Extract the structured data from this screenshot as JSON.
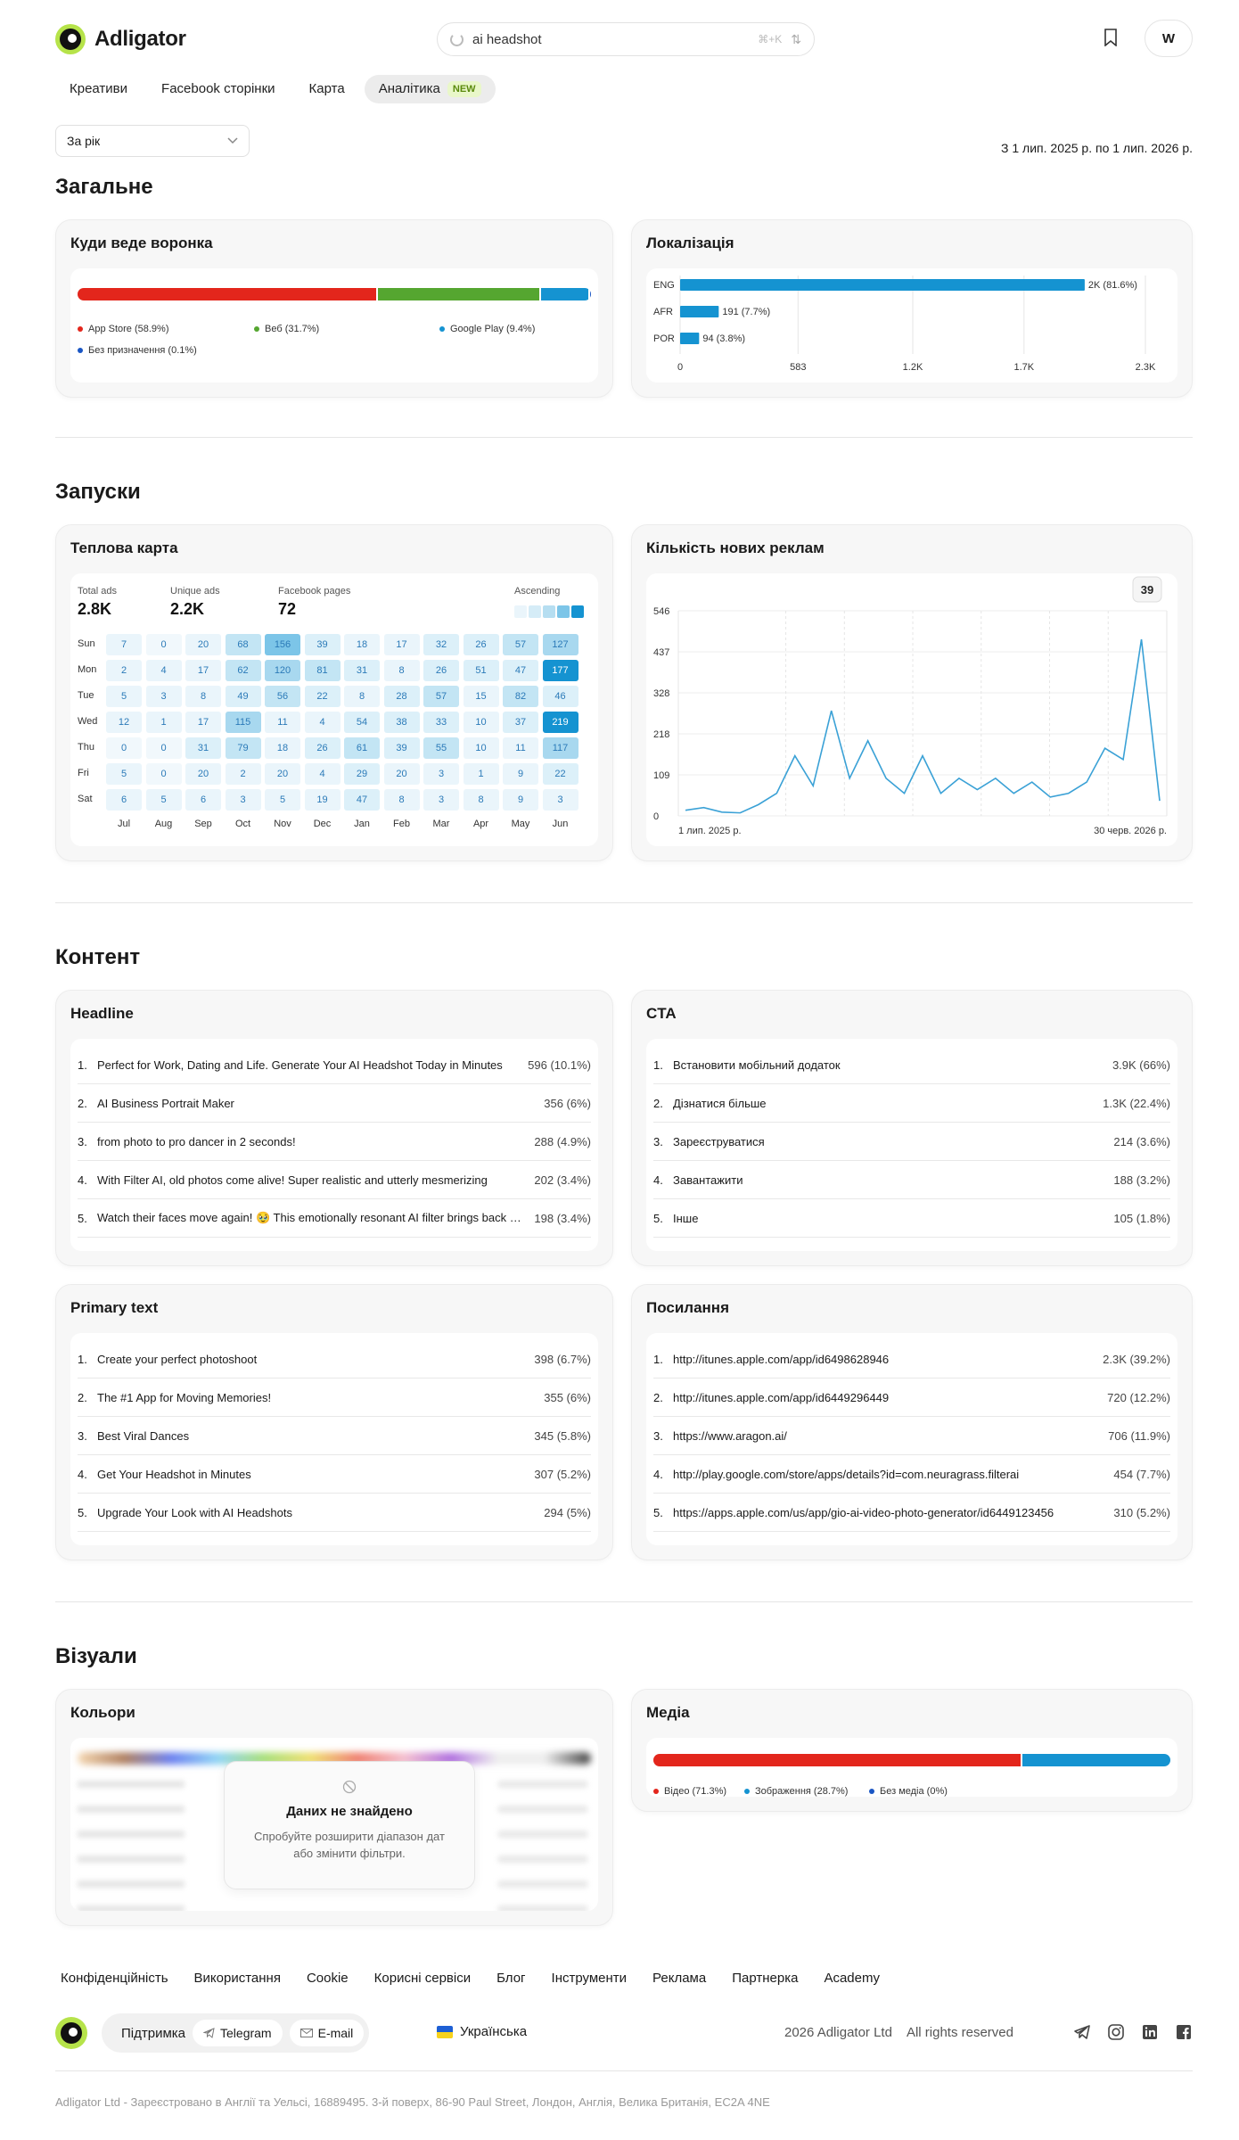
{
  "header": {
    "logo": "Adligator",
    "search_value": "ai headshot",
    "shortcut": "⌘+K",
    "avatar": "W"
  },
  "tabs": [
    {
      "label": "Креативи"
    },
    {
      "label": "Facebook сторінки"
    },
    {
      "label": "Карта"
    },
    {
      "label": "Аналітика",
      "badge": "NEW"
    }
  ],
  "period": {
    "selected": "За рік",
    "range": "З 1 лип. 2025 р. по 1 лип. 2026 р."
  },
  "sections": {
    "general": "Загальне",
    "launches": "Запуски",
    "content": "Контент",
    "visuals": "Візуали"
  },
  "funnel": {
    "title": "Куди веде воронка",
    "segments": [
      {
        "label": "App Store (58.9%)",
        "value": 58.9,
        "color": "#e3261c"
      },
      {
        "label": "Веб (31.7%)",
        "value": 31.7,
        "color": "#55a630"
      },
      {
        "label": "Google Play (9.4%)",
        "value": 9.4,
        "color": "#1593d1"
      },
      {
        "label": "Без призначення (0.1%)",
        "value": 0.1,
        "color": "#1a56c4"
      }
    ]
  },
  "localization": {
    "title": "Локалізація",
    "color": "#1593d1",
    "xmax": 2300,
    "ticks": [
      "0",
      "583",
      "1.2K",
      "1.7K",
      "2.3K"
    ],
    "rows": [
      {
        "label": "ENG",
        "value": 2000,
        "text": "2K (81.6%)"
      },
      {
        "label": "AFR",
        "value": 191,
        "text": "191 (7.7%)"
      },
      {
        "label": "POR",
        "value": 94,
        "text": "94 (3.8%)"
      }
    ]
  },
  "heatmap": {
    "title": "Теплова карта",
    "stats": [
      {
        "label": "Total ads",
        "value": "2.8K"
      },
      {
        "label": "Unique ads",
        "value": "2.2K"
      },
      {
        "label": "Facebook pages",
        "value": "72"
      }
    ],
    "ascending": "Ascending",
    "days": [
      "Sun",
      "Mon",
      "Tue",
      "Wed",
      "Thu",
      "Fri",
      "Sat"
    ],
    "months": [
      "Jul",
      "Aug",
      "Sep",
      "Oct",
      "Nov",
      "Dec",
      "Jan",
      "Feb",
      "Mar",
      "Apr",
      "May",
      "Jun"
    ],
    "values": [
      [
        7,
        0,
        20,
        68,
        156,
        39,
        18,
        17,
        32,
        26,
        57,
        127
      ],
      [
        2,
        4,
        17,
        62,
        120,
        81,
        31,
        8,
        26,
        51,
        47,
        177
      ],
      [
        5,
        3,
        8,
        49,
        56,
        22,
        8,
        28,
        57,
        15,
        82,
        46
      ],
      [
        12,
        1,
        17,
        115,
        11,
        4,
        54,
        38,
        33,
        10,
        37,
        219
      ],
      [
        0,
        0,
        31,
        79,
        18,
        26,
        61,
        39,
        55,
        10,
        11,
        117
      ],
      [
        5,
        0,
        20,
        2,
        20,
        4,
        29,
        20,
        3,
        1,
        9,
        22
      ],
      [
        6,
        5,
        6,
        3,
        5,
        19,
        47,
        8,
        3,
        8,
        9,
        3
      ]
    ]
  },
  "chart_data": {
    "type": "line",
    "title": "Кількість нових реклам",
    "tooltip": "39",
    "yticks": [
      "546",
      "437",
      "328",
      "218",
      "109",
      "0"
    ],
    "ylim": [
      0,
      546
    ],
    "x_start": "1 лип. 2025 р.",
    "x_end": "30 черв. 2026 р.",
    "color": "#3aa1d6",
    "values": [
      15,
      22,
      10,
      8,
      30,
      60,
      160,
      80,
      280,
      100,
      200,
      100,
      60,
      160,
      60,
      100,
      70,
      100,
      60,
      90,
      50,
      60,
      90,
      180,
      150,
      470,
      40
    ]
  },
  "headline": {
    "title": "Headline",
    "items": [
      {
        "text": "Perfect for Work, Dating and Life. Generate Your AI Headshot Today in Minutes",
        "value": "596 (10.1%)"
      },
      {
        "text": "AI Business Portrait Maker",
        "value": "356 (6%)"
      },
      {
        "text": "from photo to pro dancer in 2 seconds!",
        "value": "288 (4.9%)"
      },
      {
        "text": "With Filter AI, old photos come alive! Super realistic and utterly mesmerizing",
        "value": "202 (3.4%)"
      },
      {
        "text": "Watch their faces move again! 🥹 This emotionally resonant AI filter brings back memories",
        "value": "198 (3.4%)"
      }
    ]
  },
  "cta": {
    "title": "CTA",
    "items": [
      {
        "text": "Встановити мобільний додаток",
        "value": "3.9K (66%)"
      },
      {
        "text": "Дізнатися більше",
        "value": "1.3K (22.4%)"
      },
      {
        "text": "Зареєструватися",
        "value": "214 (3.6%)"
      },
      {
        "text": "Завантажити",
        "value": "188 (3.2%)"
      },
      {
        "text": "Інше",
        "value": "105 (1.8%)"
      }
    ]
  },
  "primary_text": {
    "title": "Primary text",
    "items": [
      {
        "text": "Create your perfect photoshoot",
        "value": "398 (6.7%)"
      },
      {
        "text": "The #1 App for Moving Memories!",
        "value": "355 (6%)"
      },
      {
        "text": "Best Viral Dances",
        "value": "345 (5.8%)"
      },
      {
        "text": "Get Your Headshot in Minutes",
        "value": "307 (5.2%)"
      },
      {
        "text": "Upgrade Your Look with AI Headshots",
        "value": "294 (5%)"
      }
    ]
  },
  "links": {
    "title": "Посилання",
    "items": [
      {
        "text": "http://itunes.apple.com/app/id6498628946",
        "value": "2.3K (39.2%)"
      },
      {
        "text": "http://itunes.apple.com/app/id6449296449",
        "value": "720 (12.2%)"
      },
      {
        "text": "https://www.aragon.ai/",
        "value": "706 (11.9%)"
      },
      {
        "text": "http://play.google.com/store/apps/details?id=com.neuragrass.filterai",
        "value": "454 (7.7%)"
      },
      {
        "text": "https://apps.apple.com/us/app/gio-ai-video-photo-generator/id6449123456",
        "value": "310 (5.2%)"
      }
    ]
  },
  "colors": {
    "title": "Кольори",
    "empty_title": "Даних не знайдено",
    "empty_text": "Спробуйте розширити діапазон дат або змінити фільтри."
  },
  "media": {
    "title": "Медіа",
    "segments": [
      {
        "label": "Відео (71.3%)",
        "value": 71.3,
        "color": "#e3261c"
      },
      {
        "label": "Зображення (28.7%)",
        "value": 28.7,
        "color": "#1593d1"
      },
      {
        "label": "Без медіа (0%)",
        "value": 0,
        "color": "#1a56c4"
      }
    ]
  },
  "footer": {
    "links": [
      "Конфіденційність",
      "Використання",
      "Cookie",
      "Корисні сервіси",
      "Блог",
      "Інструменти",
      "Реклама",
      "Партнерка",
      "Academy"
    ],
    "support": "Підтримка",
    "telegram": "Telegram",
    "email": "E-mail",
    "language": "Українська",
    "copyright": "2026 Adligator Ltd",
    "rights": "All rights reserved",
    "legal": "Adligator Ltd - Зареєстровано в Англії та Уельсі, 16889495. 3-й поверх, 86-90 Paul Street, Лондон, Англія, Велика Британія, EC2A 4NE"
  }
}
